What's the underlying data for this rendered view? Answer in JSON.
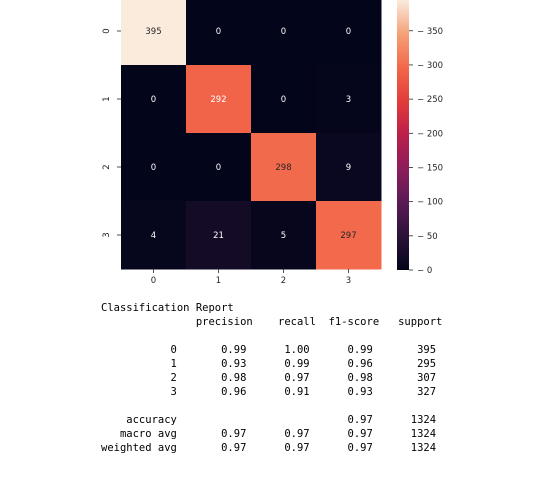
{
  "chart_data": {
    "type": "heatmap",
    "title": "",
    "xlabel": "",
    "ylabel": "",
    "x_categories": [
      "0",
      "1",
      "2",
      "3"
    ],
    "y_categories": [
      "0",
      "1",
      "2",
      "3"
    ],
    "values": [
      [
        395,
        0,
        0,
        0
      ],
      [
        0,
        292,
        0,
        3
      ],
      [
        0,
        0,
        298,
        9
      ],
      [
        4,
        21,
        5,
        297
      ]
    ],
    "colorbar": {
      "min": 0,
      "max": 395,
      "ticks": [
        0,
        50,
        100,
        150,
        200,
        250,
        300,
        350
      ],
      "colormap": "rocket"
    },
    "annotations": "cell counts"
  },
  "report": {
    "title": "Classification Report",
    "lines": [
      "               precision    recall  f1-score   support",
      "",
      "           0       0.99      1.00      0.99       395",
      "           1       0.93      0.99      0.96       295",
      "           2       0.98      0.97      0.98       307",
      "           3       0.96      0.91      0.93       327",
      "",
      "    accuracy                           0.97      1324",
      "   macro avg       0.97      0.97      0.97      1324",
      "weighted avg       0.97      0.97      0.97      1324"
    ]
  }
}
